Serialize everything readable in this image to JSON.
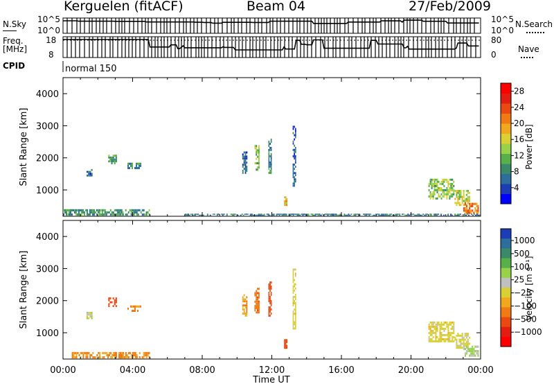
{
  "header": {
    "station": "Kerguelen (fitACF)",
    "beam": "Beam 04",
    "date": "27/Feb/2009"
  },
  "status_panel": {
    "nsky_label": "N.Sky",
    "nsearch_label": "N.Search",
    "freq_label_line1": "Freq.",
    "freq_label_line2": "[MHz]",
    "nave_label": "Nave",
    "cpid_label": "CPID",
    "cpid_value": "normal 150",
    "noise_ticks_left": [
      "10^5",
      "10^0"
    ],
    "noise_ticks_right": [
      "10^5",
      "10^0"
    ],
    "freq_ticks": [
      "18",
      "8"
    ],
    "nave_ticks": [
      "80",
      "0"
    ]
  },
  "chart_data": [
    {
      "type": "heatmap",
      "name": "power",
      "ylabel": "Slant Range [km]",
      "xlabel": "",
      "ylim": [
        180,
        4500
      ],
      "yticks": [
        1000,
        2000,
        3000,
        4000
      ],
      "xlim_hours": [
        0,
        24
      ],
      "colorbar": {
        "label": "Power [dB]",
        "ticks": [
          4,
          8,
          12,
          16,
          20,
          24,
          28
        ],
        "range": [
          0,
          30
        ],
        "colors": [
          "#0000ff",
          "#1c3db4",
          "#2d6e9b",
          "#3a8a6a",
          "#59b04a",
          "#98d24a",
          "#d8d034",
          "#f2a81e",
          "#f07a14",
          "#e84a12",
          "#e21e12",
          "#ff0000"
        ]
      },
      "patches": [
        {
          "t0": 1.35,
          "t1": 1.7,
          "r0": 1420,
          "r1": 1650,
          "value": 6
        },
        {
          "t0": 2.6,
          "t1": 3.1,
          "r0": 1800,
          "r1": 2100,
          "value": 10
        },
        {
          "t0": 3.7,
          "t1": 4.5,
          "r0": 1650,
          "r1": 1850,
          "value": 9
        },
        {
          "t0": 10.3,
          "t1": 10.6,
          "r0": 1500,
          "r1": 2200,
          "value": 6
        },
        {
          "t0": 11.0,
          "t1": 11.3,
          "r0": 1600,
          "r1": 2400,
          "value": 12
        },
        {
          "t0": 11.8,
          "t1": 12.0,
          "r0": 1500,
          "r1": 2600,
          "value": 8
        },
        {
          "t0": 13.2,
          "t1": 13.4,
          "r0": 1100,
          "r1": 3000,
          "value": 5
        },
        {
          "t0": 21.0,
          "t1": 22.5,
          "r0": 700,
          "r1": 1350,
          "value": 13
        },
        {
          "t0": 22.5,
          "t1": 23.4,
          "r0": 500,
          "r1": 1000,
          "value": 15
        },
        {
          "t0": 23.0,
          "t1": 23.9,
          "r0": 250,
          "r1": 600,
          "value": 21
        },
        {
          "t0": 0.0,
          "t1": 5.0,
          "r0": 200,
          "r1": 400,
          "value": 9
        },
        {
          "t0": 7.0,
          "t1": 24.0,
          "r0": 200,
          "r1": 260,
          "value": 7
        },
        {
          "t0": 12.7,
          "t1": 12.9,
          "r0": 500,
          "r1": 800,
          "value": 17
        }
      ]
    },
    {
      "type": "heatmap",
      "name": "velocity",
      "ylabel": "Slant Range [km]",
      "xlabel": "Time UT",
      "ylim": [
        180,
        4500
      ],
      "yticks": [
        1000,
        2000,
        3000,
        4000
      ],
      "xlim_hours": [
        0,
        24
      ],
      "xticks": [
        "00:00",
        "04:00",
        "08:00",
        "12:00",
        "16:00",
        "20:00",
        "00:00"
      ],
      "colorbar": {
        "label": "Velocity [m s⁻¹]",
        "ticks": [
          "1000",
          "500",
          "100",
          "25",
          "−25",
          "−100",
          "−500",
          "−1000"
        ],
        "colors": [
          "#1c3db4",
          "#2d6e9b",
          "#3a8a6a",
          "#59b04a",
          "#98d24a",
          "#c0c0c0",
          "#d8d034",
          "#f2a81e",
          "#f07a14",
          "#e84a12",
          "#e21e12",
          "#ff0000"
        ]
      },
      "patches": [
        {
          "t0": 1.35,
          "t1": 1.7,
          "r0": 1420,
          "r1": 1650,
          "value": 40
        },
        {
          "t0": 2.6,
          "t1": 3.1,
          "r0": 1800,
          "r1": 2100,
          "value": -150
        },
        {
          "t0": 3.7,
          "t1": 4.5,
          "r0": 1650,
          "r1": 1850,
          "value": -60
        },
        {
          "t0": 10.3,
          "t1": 10.6,
          "r0": 1500,
          "r1": 2200,
          "value": -40
        },
        {
          "t0": 11.0,
          "t1": 11.3,
          "r0": 1600,
          "r1": 2400,
          "value": -80
        },
        {
          "t0": 11.8,
          "t1": 12.0,
          "r0": 1500,
          "r1": 2600,
          "value": -200
        },
        {
          "t0": 13.2,
          "t1": 13.4,
          "r0": 1100,
          "r1": 3000,
          "value": 0
        },
        {
          "t0": 21.0,
          "t1": 22.5,
          "r0": 700,
          "r1": 1350,
          "value": 0
        },
        {
          "t0": 22.5,
          "t1": 23.4,
          "r0": 500,
          "r1": 1000,
          "value": 10
        },
        {
          "t0": 23.0,
          "t1": 23.9,
          "r0": 250,
          "r1": 600,
          "value": 60
        },
        {
          "t0": 0.5,
          "t1": 5.0,
          "r0": 200,
          "r1": 400,
          "value": -60
        },
        {
          "t0": 12.7,
          "t1": 12.9,
          "r0": 500,
          "r1": 800,
          "value": -150
        }
      ]
    }
  ]
}
